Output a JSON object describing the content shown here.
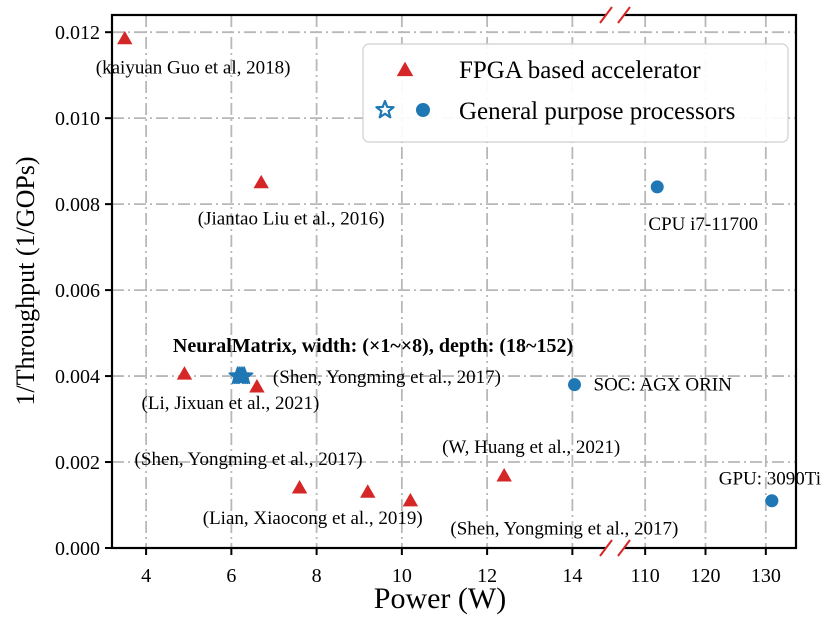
{
  "chart_data": {
    "type": "scatter",
    "title": "",
    "xlabel": "Power (W)",
    "ylabel": "1/Throughput (1/GOPs)",
    "x_axis_segments": [
      {
        "range": [
          3.2,
          15.0
        ],
        "ticks": [
          4,
          6,
          8,
          10,
          12,
          14
        ]
      },
      {
        "range": [
          105,
          135
        ],
        "ticks": [
          110,
          120,
          130
        ]
      }
    ],
    "ylim": [
      0,
      0.0124
    ],
    "y_ticks": [
      "0.000",
      "0.002",
      "0.004",
      "0.006",
      "0.008",
      "0.010",
      "0.012"
    ],
    "grid": true,
    "legend_position": "top-right",
    "legend": [
      {
        "label": "FPGA based accelerator",
        "markers": [
          "triangle"
        ],
        "color": "#d62728"
      },
      {
        "label": "General purpose processors",
        "markers": [
          "star",
          "circle"
        ],
        "color": "#1f77b4"
      }
    ],
    "series": [
      {
        "name": "FPGA based accelerator",
        "marker": "triangle",
        "color": "#d62728",
        "points": [
          {
            "x": 3.5,
            "y": 0.01185,
            "label": "(kaiyuan Guo et al, 2018)"
          },
          {
            "x": 6.7,
            "y": 0.0085,
            "label": "(Jiantao Liu et al., 2016)"
          },
          {
            "x": 4.9,
            "y": 0.00405,
            "label": "(Li, Jixuan et al., 2021)"
          },
          {
            "x": 6.6,
            "y": 0.00375,
            "label": "(Shen, Yongming et al., 2017)"
          },
          {
            "x": 7.6,
            "y": 0.0014,
            "label": "(Shen, Yongming et al., 2017)"
          },
          {
            "x": 9.2,
            "y": 0.0013,
            "label": "(Lian, Xiaocong et al., 2019)"
          },
          {
            "x": 10.2,
            "y": 0.0011,
            "label": "(Shen, Yongming et al., 2017)"
          },
          {
            "x": 12.4,
            "y": 0.00168,
            "label": "(W, Huang et al., 2021)"
          }
        ]
      },
      {
        "name": "NeuralMatrix",
        "marker": "star",
        "color": "#1f77b4",
        "label": "NeuralMatrix, width: (×1~×8), depth: (18~152)",
        "points": [
          {
            "x": 6.15,
            "y": 0.004
          },
          {
            "x": 6.2,
            "y": 0.004
          },
          {
            "x": 6.25,
            "y": 0.004
          },
          {
            "x": 6.3,
            "y": 0.004
          }
        ]
      },
      {
        "name": "General purpose processors",
        "marker": "circle",
        "color": "#1f77b4",
        "points": [
          {
            "x": 14.05,
            "y": 0.0038,
            "label": "SOC: AGX ORIN"
          },
          {
            "x": 112,
            "y": 0.0084,
            "label": "CPU i7-11700"
          },
          {
            "x": 131,
            "y": 0.0011,
            "label": "GPU: 3090Ti"
          }
        ]
      }
    ]
  }
}
